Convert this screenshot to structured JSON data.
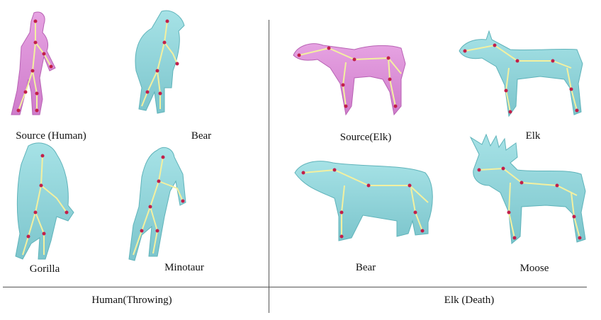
{
  "labels": {
    "source_human": "Source (Human)",
    "bear_left": "Bear",
    "gorilla": "Gorilla",
    "minotaur": "Minotaur",
    "source_elk": "Source(Elk)",
    "elk": "Elk",
    "bear_right": "Bear",
    "moose": "Moose"
  },
  "captions": {
    "left": "Human(Throwing)",
    "right": "Elk (Death)"
  },
  "colors": {
    "mesh": "#8fd3d9",
    "mesh_edge": "#5fb3ba",
    "source_mesh": "#d98fd6",
    "bone": "#f3f0a0",
    "joint": "#c21f4a"
  }
}
